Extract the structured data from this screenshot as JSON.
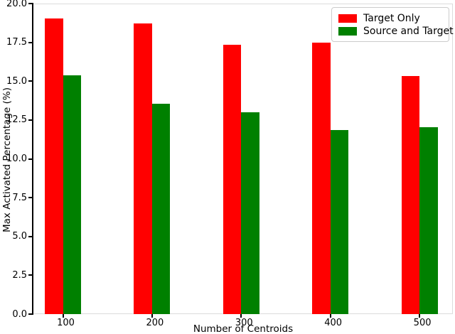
{
  "chart_data": {
    "type": "bar",
    "title": "",
    "xlabel": "Number of Centroids",
    "ylabel": "Max Activated Percentage (%)",
    "categories": [
      "100",
      "200",
      "300",
      "400",
      "500"
    ],
    "series": [
      {
        "name": "Target Only",
        "color": "#ff0000",
        "values": [
          19.05,
          18.7,
          17.35,
          17.5,
          15.35
        ]
      },
      {
        "name": "Source and Target",
        "color": "#008000",
        "values": [
          15.4,
          13.55,
          13.0,
          11.85,
          12.05
        ]
      }
    ],
    "ylim": [
      0,
      20
    ],
    "yticks": [
      0.0,
      2.5,
      5.0,
      7.5,
      10.0,
      12.5,
      15.0,
      17.5,
      20.0
    ],
    "ytick_labels": [
      "0.0",
      "2.5",
      "5.0",
      "7.5",
      "10.0",
      "12.5",
      "15.0",
      "17.5",
      "20.0"
    ],
    "legend_position": "upper right",
    "grid": false,
    "colors": {
      "axis_spine": "#000000",
      "light_spine": "#dcdcdc",
      "text": "#000000",
      "background": "#ffffff"
    }
  }
}
